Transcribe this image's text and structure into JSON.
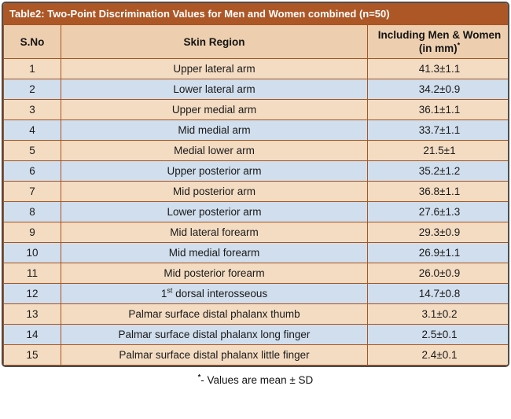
{
  "table": {
    "title": "Table2: Two-Point Discrimination Values for Men and Women combined (n=50)",
    "columns": [
      "S.No",
      "Skin Region",
      {
        "text": "Including Men & Women (in mm)",
        "sup": "*"
      }
    ],
    "rows": [
      {
        "sno": "1",
        "region": "Upper lateral arm",
        "value": "41.3±1.1"
      },
      {
        "sno": "2",
        "region": "Lower lateral arm",
        "value": "34.2±0.9"
      },
      {
        "sno": "3",
        "region": "Upper medial arm",
        "value": "36.1±1.1"
      },
      {
        "sno": "4",
        "region": "Mid medial arm",
        "value": "33.7±1.1"
      },
      {
        "sno": "5",
        "region": "Medial lower arm",
        "value": "21.5±1"
      },
      {
        "sno": "6",
        "region": "Upper posterior arm",
        "value": "35.2±1.2"
      },
      {
        "sno": "7",
        "region": "Mid posterior arm",
        "value": "36.8±1.1"
      },
      {
        "sno": "8",
        "region": "Lower posterior arm",
        "value": "27.6±1.3"
      },
      {
        "sno": "9",
        "region": "Mid lateral forearm",
        "value": "29.3±0.9"
      },
      {
        "sno": "10",
        "region": "Mid medial forearm",
        "value": "26.9±1.1"
      },
      {
        "sno": "11",
        "region": "Mid posterior forearm",
        "value": "26.0±0.9"
      },
      {
        "sno": "12",
        "region_pre": "1",
        "region_sup": "st",
        "region_post": " dorsal interosseous",
        "value": "14.7±0.8"
      },
      {
        "sno": "13",
        "region": "Palmar surface distal phalanx thumb",
        "value": "3.1±0.2"
      },
      {
        "sno": "14",
        "region": "Palmar surface distal phalanx long finger",
        "value": "2.5±0.1"
      },
      {
        "sno": "15",
        "region": "Palmar surface distal phalanx little finger",
        "value": "2.4±0.1"
      }
    ]
  },
  "footnote": {
    "sup": "*",
    "text": "- Values are mean ± SD"
  },
  "colors": {
    "brand": "#ad5727",
    "titleText": "#ffffff",
    "line": "#a65421",
    "headerBg": "#edcfaf",
    "peach": "#f4dcc2",
    "blue": "#d0deed",
    "outer": "#4d4d4d",
    "text": "#1a1a1a"
  }
}
